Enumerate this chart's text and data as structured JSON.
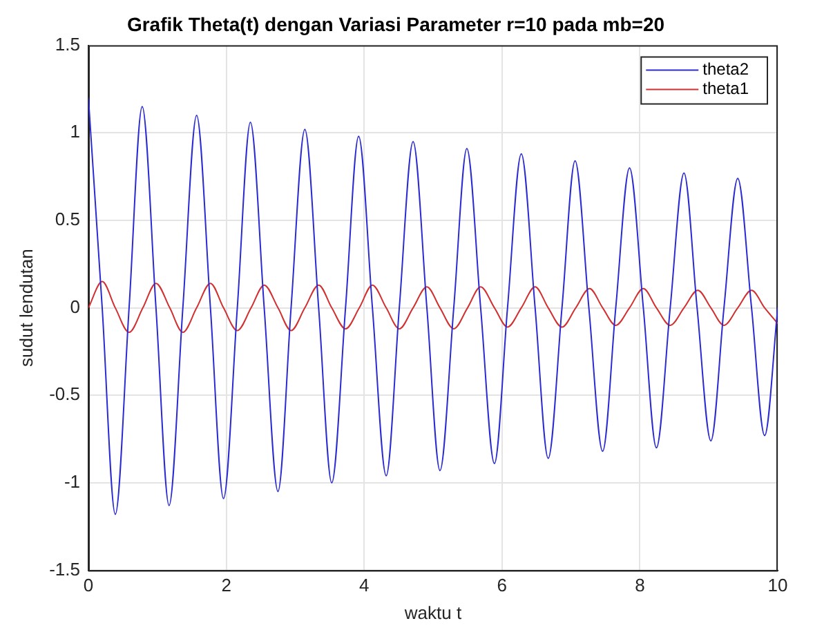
{
  "chart_data": {
    "type": "line",
    "title": "Grafik Theta(t) dengan Variasi Parameter r=10 pada mb=20",
    "xlabel": "waktu t",
    "ylabel": "sudut lendutan",
    "xlim": [
      0,
      10
    ],
    "xticks": [
      0,
      2,
      4,
      6,
      8,
      10
    ],
    "ylim": [
      -1.5,
      1.5
    ],
    "yticks": [
      -1.5,
      -1,
      -0.5,
      0,
      0.5,
      1,
      1.5
    ],
    "grid": true,
    "legend": "top right",
    "marker": "none",
    "line_style": "solid",
    "series": [
      {
        "name": "theta2",
        "color": "#2b2bd0",
        "x": [
          0,
          0.2,
          0.39,
          0.59,
          0.78,
          0.98,
          1.17,
          1.37,
          1.57,
          1.77,
          1.96,
          2.16,
          2.35,
          2.55,
          2.75,
          2.94,
          3.14,
          3.34,
          3.53,
          3.73,
          3.92,
          4.12,
          4.32,
          4.51,
          4.71,
          4.91,
          5.1,
          5.3,
          5.49,
          5.69,
          5.89,
          6.08,
          6.28,
          6.48,
          6.67,
          6.87,
          7.06,
          7.26,
          7.46,
          7.65,
          7.85,
          8.05,
          8.24,
          8.44,
          8.64,
          8.83,
          9.03,
          9.22,
          9.42,
          9.62,
          9.81,
          10
        ],
        "values": [
          1.2,
          0,
          -1.18,
          0,
          1.15,
          0,
          -1.13,
          0,
          1.1,
          0,
          -1.09,
          0,
          1.06,
          0,
          -1.05,
          0,
          1.02,
          0,
          -1.0,
          0,
          0.98,
          0,
          -0.96,
          0,
          0.95,
          0,
          -0.93,
          0,
          0.91,
          0,
          -0.89,
          0,
          0.88,
          0,
          -0.86,
          0,
          0.84,
          0,
          -0.82,
          0,
          0.8,
          0,
          -0.8,
          0,
          0.77,
          0,
          -0.76,
          0,
          0.74,
          0,
          -0.73,
          0
        ]
      },
      {
        "name": "theta1",
        "color": "#d03030",
        "x": [
          0,
          0.2,
          0.39,
          0.59,
          0.79,
          0.98,
          1.18,
          1.37,
          1.57,
          1.77,
          1.96,
          2.16,
          2.36,
          2.55,
          2.75,
          2.94,
          3.14,
          3.34,
          3.53,
          3.73,
          3.93,
          4.12,
          4.32,
          4.51,
          4.71,
          4.91,
          5.1,
          5.3,
          5.5,
          5.69,
          5.89,
          6.08,
          6.28,
          6.48,
          6.67,
          6.87,
          7.07,
          7.27,
          7.46,
          7.65,
          7.85,
          8.05,
          8.24,
          8.44,
          8.64,
          8.84,
          9.03,
          9.22,
          9.42,
          9.62,
          9.81,
          10
        ],
        "values": [
          0,
          0.15,
          0,
          -0.14,
          0,
          0.14,
          0,
          -0.14,
          0,
          0.14,
          0,
          -0.13,
          0,
          0.13,
          0,
          -0.13,
          0,
          0.13,
          0,
          -0.12,
          0,
          0.13,
          0,
          -0.12,
          0,
          0.12,
          0,
          -0.12,
          0,
          0.12,
          0,
          -0.11,
          0,
          0.12,
          0,
          -0.11,
          0,
          0.11,
          0,
          -0.1,
          0,
          0.11,
          0,
          -0.1,
          0,
          0.1,
          0,
          -0.1,
          0,
          0.1,
          0,
          -0.09
        ]
      }
    ]
  }
}
